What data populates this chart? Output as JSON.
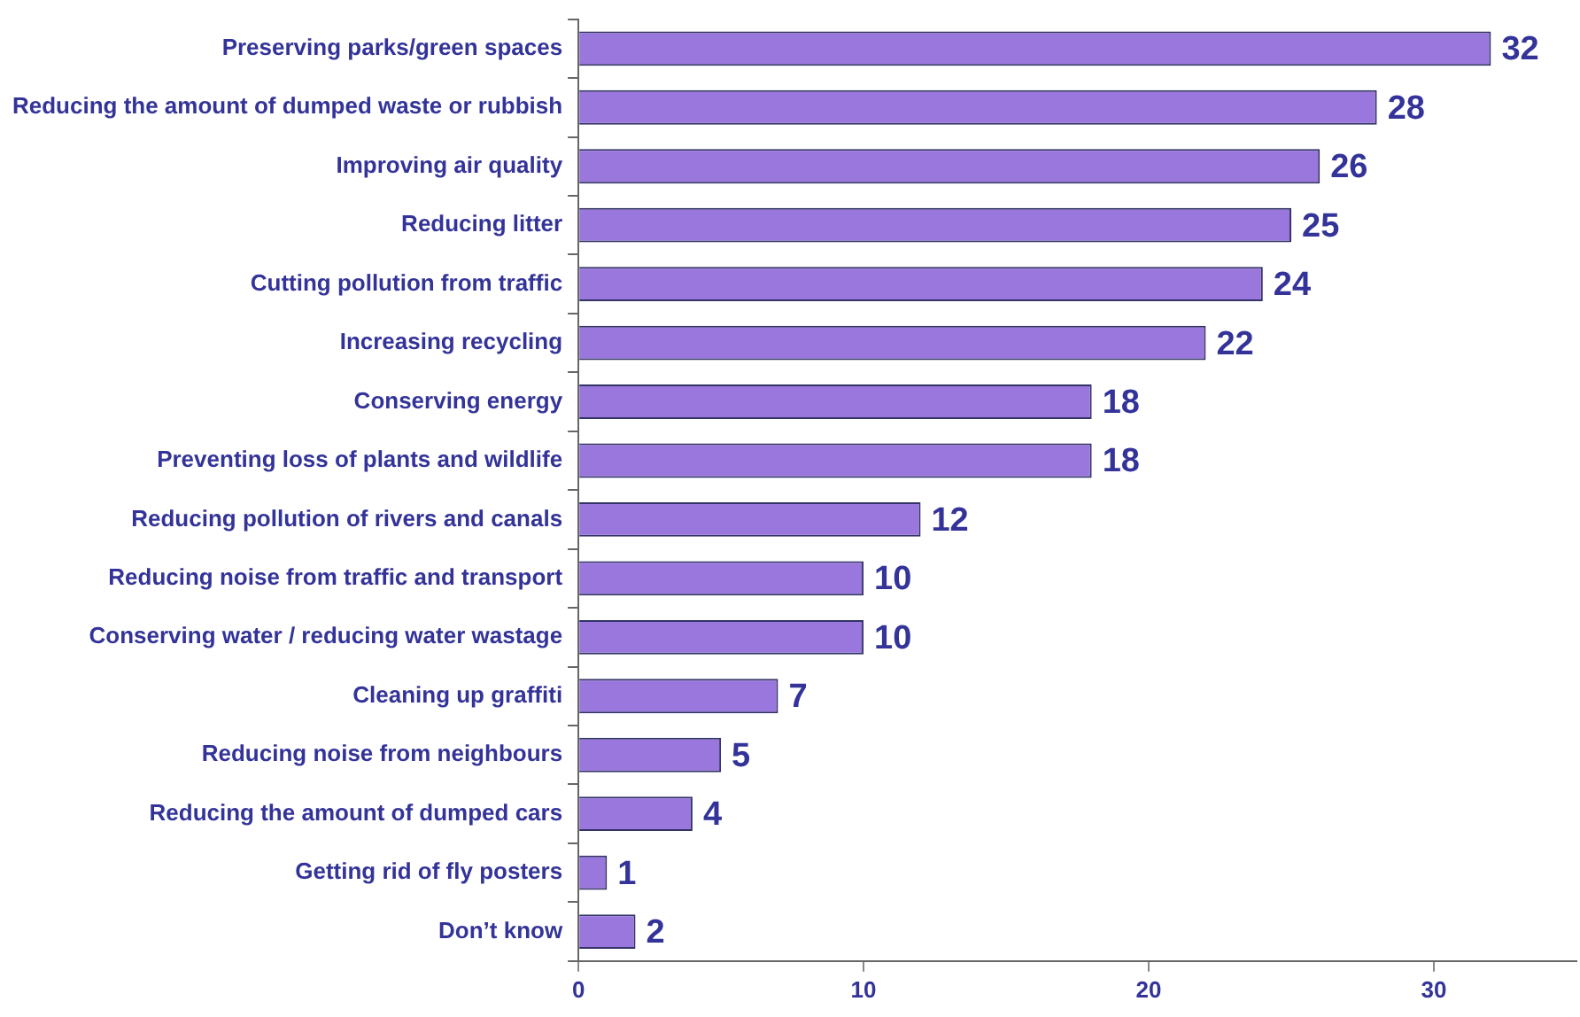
{
  "chart_data": {
    "type": "bar",
    "orientation": "horizontal",
    "categories": [
      "Preserving parks/green spaces",
      "Reducing the amount of dumped waste or rubbish",
      "Improving air quality",
      "Reducing litter",
      "Cutting pollution from traffic",
      "Increasing recycling",
      "Conserving energy",
      "Preventing loss of plants and wildlife",
      "Reducing pollution of rivers and canals",
      "Reducing noise from traffic and transport",
      "Conserving water / reducing water wastage",
      "Cleaning up graffiti",
      "Reducing noise from neighbours",
      "Reducing the amount of dumped cars",
      "Getting rid of fly posters",
      "Don’t know"
    ],
    "values": [
      32,
      28,
      26,
      25,
      24,
      22,
      18,
      18,
      12,
      10,
      10,
      7,
      5,
      4,
      1,
      2
    ],
    "color": "#9977dd",
    "xlim": [
      0,
      35
    ],
    "xticks": [
      0,
      10,
      20,
      30
    ],
    "grid": false,
    "legend": false,
    "data_labels": true
  }
}
